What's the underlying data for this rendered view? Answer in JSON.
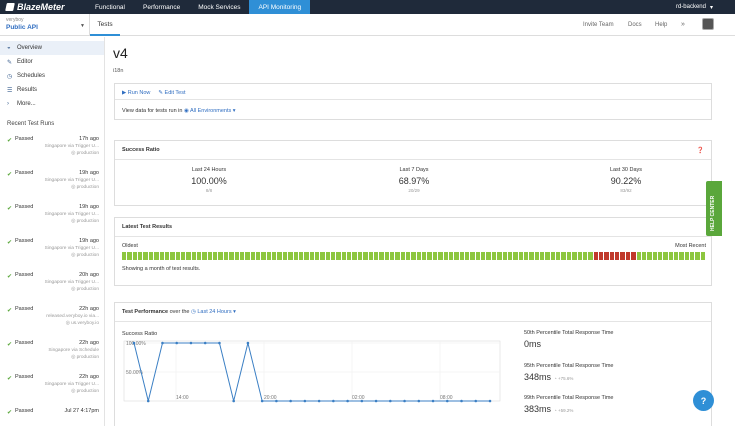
{
  "nav": {
    "logo": "BlazeMeter",
    "tabs": [
      "Functional",
      "Performance",
      "Mock Services",
      "API Monitoring"
    ],
    "active_tab": "API Monitoring",
    "account": "rd-backend"
  },
  "workspace": {
    "account": "veryboy",
    "project": "Public API",
    "tab": "Tests",
    "links": [
      "Invite Team",
      "Docs",
      "Help"
    ],
    "expand": "»"
  },
  "sidebar": {
    "items": [
      {
        "label": "Overview",
        "icon": "gauge-icon",
        "glyph": "◒"
      },
      {
        "label": "Editor",
        "icon": "pencil-icon",
        "glyph": "✎"
      },
      {
        "label": "Schedules",
        "icon": "clock-icon",
        "glyph": "◷"
      },
      {
        "label": "Results",
        "icon": "list-icon",
        "glyph": "☰"
      },
      {
        "label": "More...",
        "icon": "chevron-right-icon",
        "glyph": "›"
      }
    ],
    "recent_title": "Recent Test Runs",
    "runs": [
      {
        "status": "Passed",
        "time": "17h ago",
        "desc": "Singapore via Trigger U...",
        "env": "production"
      },
      {
        "status": "Passed",
        "time": "19h ago",
        "desc": "Singapore via Trigger U...",
        "env": "production"
      },
      {
        "status": "Passed",
        "time": "19h ago",
        "desc": "Singapore via Trigger U...",
        "env": "production"
      },
      {
        "status": "Passed",
        "time": "19h ago",
        "desc": "Singapore via Trigger U...",
        "env": "production"
      },
      {
        "status": "Passed",
        "time": "20h ago",
        "desc": "Singapore via Trigger U...",
        "env": "production"
      },
      {
        "status": "Passed",
        "time": "22h ago",
        "desc": "released.veryboy.io via...",
        "env": "us.veryboy.io"
      },
      {
        "status": "Passed",
        "time": "22h ago",
        "desc": "Singapore via Schedule",
        "env": "production"
      },
      {
        "status": "Passed",
        "time": "22h ago",
        "desc": "Singapore via Trigger U...",
        "env": "production"
      },
      {
        "status": "Passed",
        "time": "Jul 27 4:17pm",
        "desc": "",
        "env": ""
      }
    ]
  },
  "main": {
    "title": "v4",
    "subtitle": "i18n",
    "run_now": "Run Now",
    "edit_test": "Edit Test",
    "view_data": "View data for tests run in",
    "env_select": "All Environments",
    "success_ratio": {
      "title": "Success Ratio",
      "cols": [
        {
          "label": "Last 24 Hours",
          "value": "100.00%",
          "count": "8/8"
        },
        {
          "label": "Last 7 Days",
          "value": "68.97%",
          "count": "20/29"
        },
        {
          "label": "Last 30 Days",
          "value": "90.22%",
          "count": "83/92"
        }
      ]
    },
    "latest_results": {
      "title": "Latest Test Results",
      "left_label": "Oldest",
      "right_label": "Most Recent",
      "note": "Showing a month of test results.",
      "results": [
        1,
        1,
        1,
        1,
        1,
        1,
        1,
        1,
        1,
        1,
        1,
        1,
        1,
        1,
        1,
        1,
        1,
        1,
        1,
        1,
        1,
        1,
        1,
        1,
        1,
        1,
        1,
        1,
        1,
        1,
        1,
        1,
        1,
        1,
        1,
        1,
        1,
        1,
        1,
        1,
        1,
        1,
        1,
        1,
        1,
        1,
        1,
        1,
        1,
        1,
        1,
        1,
        1,
        1,
        1,
        1,
        1,
        1,
        1,
        1,
        1,
        1,
        1,
        1,
        1,
        1,
        1,
        1,
        1,
        1,
        1,
        1,
        1,
        1,
        1,
        1,
        1,
        1,
        1,
        1,
        1,
        1,
        1,
        1,
        1,
        1,
        1,
        1,
        0,
        0,
        0,
        0,
        0,
        0,
        0,
        0,
        1,
        1,
        1,
        1,
        1,
        1,
        1,
        1,
        1,
        1,
        1,
        1,
        1
      ],
      "colors": {
        "pass": "#8dc63f",
        "fail": "#c0392b"
      }
    },
    "performance": {
      "title": "Test Performance",
      "over": "over the",
      "range": "Last 24 Hours",
      "chart_title": "Success Ratio",
      "percentiles": [
        {
          "label": "50th Percentile Total Response Time",
          "value": "0ms",
          "delta": ""
        },
        {
          "label": "95th Percentile Total Response Time",
          "value": "348ms",
          "delta": "+75.6%"
        },
        {
          "label": "99th Percentile Total Response Time",
          "value": "383ms",
          "delta": "+59.2%"
        }
      ]
    }
  },
  "chart_data": {
    "type": "line",
    "title": "Success Ratio",
    "y_ticks": [
      "100.00%",
      "50.00%"
    ],
    "x_ticks": [
      "14:00",
      "20:00",
      "02:00",
      "08:00"
    ],
    "ylim": [
      0,
      100
    ],
    "values": [
      100,
      0,
      100,
      100,
      100,
      100,
      100,
      0,
      100,
      0,
      0,
      0,
      0,
      0,
      0,
      0,
      0,
      0,
      0,
      0,
      0,
      0,
      0,
      0,
      0,
      0
    ]
  },
  "help_center": "HELP CENTER",
  "help_fab": "?"
}
